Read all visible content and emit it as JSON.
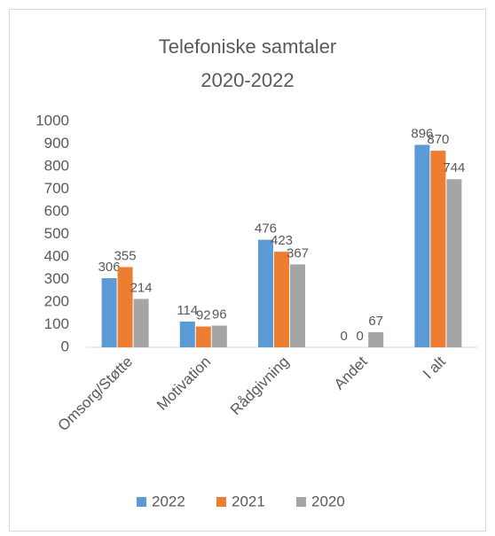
{
  "chart_data": {
    "type": "bar",
    "title": "Telefoniske samtaler",
    "subtitle": "2020-2022",
    "categories": [
      "Omsorg/Støtte",
      "Motivation",
      "Rådgivning",
      "Andet",
      "I alt"
    ],
    "series": [
      {
        "name": "2022",
        "color": "#5b9bd5",
        "values": [
          306,
          114,
          476,
          0,
          896
        ]
      },
      {
        "name": "2021",
        "color": "#ed7d31",
        "values": [
          355,
          92,
          423,
          0,
          870
        ]
      },
      {
        "name": "2020",
        "color": "#a5a5a5",
        "values": [
          214,
          96,
          367,
          67,
          744
        ]
      }
    ],
    "ylim": [
      0,
      1000
    ],
    "yticks": [
      0,
      100,
      200,
      300,
      400,
      500,
      600,
      700,
      800,
      900,
      1000
    ],
    "grid": false,
    "legend": "bottom"
  }
}
